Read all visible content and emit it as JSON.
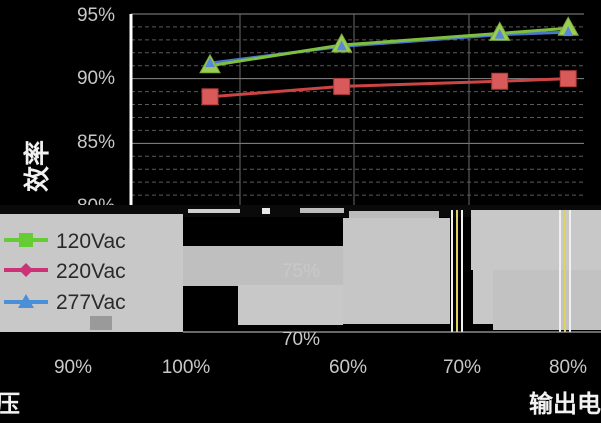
{
  "chart_data": {
    "type": "line",
    "ylabel": "效率",
    "xlabel": "输出电",
    "ylim": [
      80,
      95
    ],
    "yticks": [
      "95%",
      "90%",
      "85%",
      "80%"
    ],
    "x": [
      0.15,
      0.4,
      0.7,
      0.83
    ],
    "series": [
      {
        "name": "120Vac",
        "color": "#7fbf3f",
        "marker": "square",
        "values": [
          91.0,
          92.6,
          93.5,
          93.9
        ]
      },
      {
        "name": "220Vac",
        "color": "#cc4444",
        "marker": "square",
        "values": [
          88.6,
          89.4,
          89.8,
          90.0
        ]
      },
      {
        "name": "277Vac",
        "color": "#4a78c8",
        "marker": "triangle",
        "values": [
          91.2,
          92.5,
          93.4,
          93.6
        ]
      }
    ],
    "overlay": {
      "yticks": [
        "75%",
        "70%"
      ],
      "xticks_left": [
        "90%",
        "100%"
      ],
      "xticks_right": [
        "60%",
        "70%",
        "80%"
      ],
      "fragment_label": "压"
    }
  }
}
